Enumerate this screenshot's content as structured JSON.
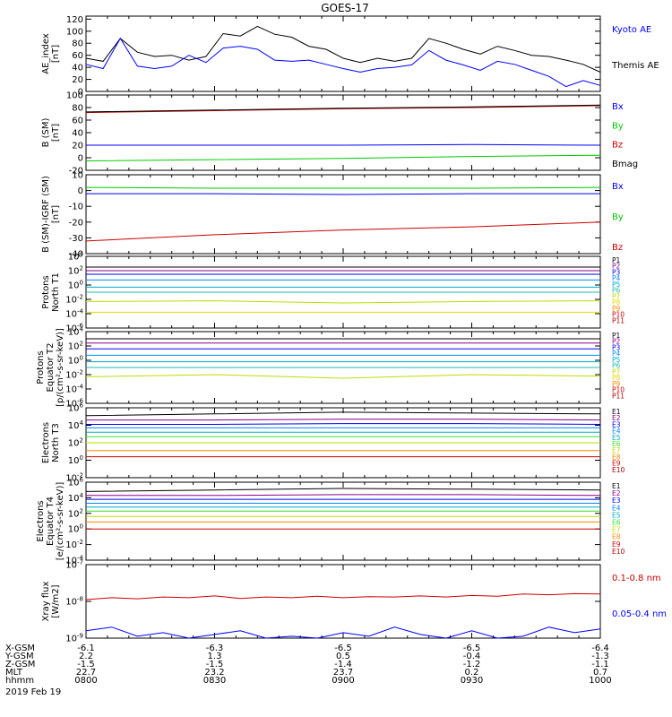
{
  "title": "GOES-17",
  "date_label": "2019 Feb 19",
  "colors": {
    "blue": "#0000ff",
    "green": "#00cc00",
    "red": "#cc0000",
    "black": "#000000",
    "navy": "#000099",
    "cyan": "#00aacc",
    "teal": "#22bbaa",
    "lime": "#33dd33",
    "yellowgreen": "#bbdd00",
    "yellow": "#e8d800",
    "orange": "#ff8800",
    "darkred": "#aa0000",
    "purple": "#880088",
    "dodger": "#0088ff"
  },
  "chart_data": [
    {
      "type": "line",
      "id": "ae",
      "ylabel": "AE_index\n[nT]",
      "ylim": [
        0,
        125
      ],
      "yticks": [
        "0",
        "20",
        "40",
        "60",
        "80",
        "100",
        "120"
      ],
      "legend": [
        {
          "label": "Kyoto AE",
          "color": "#0000ff"
        },
        {
          "label": "Themis AE",
          "color": "#000000"
        }
      ],
      "x": [
        0,
        4,
        8,
        12,
        16,
        20,
        24,
        28,
        32,
        36,
        40,
        44,
        48,
        52,
        56,
        60,
        64,
        68,
        72,
        76,
        80,
        84,
        88,
        92,
        96,
        100,
        104,
        108,
        112,
        116,
        120
      ],
      "series": [
        {
          "name": "Themis AE",
          "color": "#000000",
          "values": [
            55,
            50,
            88,
            65,
            58,
            60,
            52,
            58,
            96,
            92,
            108,
            95,
            90,
            75,
            70,
            55,
            48,
            55,
            50,
            55,
            88,
            80,
            70,
            62,
            75,
            68,
            60,
            58,
            52,
            45,
            32
          ]
        },
        {
          "name": "Kyoto AE",
          "color": "#0000ff",
          "values": [
            45,
            38,
            88,
            42,
            38,
            42,
            60,
            48,
            72,
            75,
            70,
            52,
            50,
            52,
            45,
            38,
            32,
            38,
            40,
            44,
            68,
            52,
            44,
            35,
            50,
            45,
            35,
            25,
            8,
            18,
            10
          ]
        }
      ]
    },
    {
      "type": "line",
      "id": "bsm",
      "ylabel": "B (SM)\n[nT]",
      "ylim": [
        -20,
        100
      ],
      "yticks": [
        "-20",
        "0",
        "20",
        "40",
        "60",
        "80",
        "100"
      ],
      "legend": [
        {
          "label": "Bx",
          "color": "#0000ff"
        },
        {
          "label": "By",
          "color": "#00cc00"
        },
        {
          "label": "Bz",
          "color": "#cc0000"
        },
        {
          "label": "Bmag",
          "color": "#000000"
        }
      ],
      "x": [
        0,
        30,
        60,
        90,
        120
      ],
      "series": [
        {
          "name": "Bz",
          "color": "#cc0000",
          "values": [
            72,
            75,
            78,
            80,
            83
          ]
        },
        {
          "name": "Bmag",
          "color": "#000000",
          "values": [
            73,
            76,
            79,
            81,
            84
          ]
        },
        {
          "name": "Bx",
          "color": "#0000ff",
          "values": [
            20,
            20,
            20,
            21,
            20
          ]
        },
        {
          "name": "By",
          "color": "#00cc00",
          "values": [
            -5,
            -3,
            -1,
            2,
            4
          ]
        }
      ]
    },
    {
      "type": "line",
      "id": "bigrf",
      "ylabel": "B (SM)-IGRF (SM)\n[nT]",
      "ylim": [
        -40,
        10
      ],
      "yticks": [
        "-40",
        "-30",
        "-20",
        "-10",
        "0",
        "10"
      ],
      "legend": [
        {
          "label": "Bx",
          "color": "#0000ff"
        },
        {
          "label": "By",
          "color": "#00cc00"
        },
        {
          "label": "Bz",
          "color": "#cc0000"
        }
      ],
      "x": [
        0,
        30,
        60,
        90,
        120
      ],
      "series": [
        {
          "name": "By",
          "color": "#00cc00",
          "values": [
            2,
            1.5,
            1.5,
            1.5,
            2
          ]
        },
        {
          "name": "Bx",
          "color": "#0000ff",
          "values": [
            -2,
            -2,
            -2.5,
            -2,
            -2
          ]
        },
        {
          "name": "Bz",
          "color": "#cc0000",
          "values": [
            -32,
            -28,
            -25,
            -23,
            -20
          ]
        }
      ]
    },
    {
      "type": "line",
      "id": "pt1",
      "log": true,
      "ylabel": "Protons\nNorth T1",
      "ylim": [
        -6,
        4
      ],
      "yticks": [
        "10^4",
        "10^2",
        "10^0",
        "10^-2",
        "10^-4",
        "10^-6"
      ],
      "legend": [
        {
          "label": "P1",
          "color": "#000000"
        },
        {
          "label": "P2",
          "color": "#880088"
        },
        {
          "label": "P3",
          "color": "#0000ff"
        },
        {
          "label": "P4",
          "color": "#0088ff"
        },
        {
          "label": "P5",
          "color": "#00aacc"
        },
        {
          "label": "P6",
          "color": "#22bbaa"
        },
        {
          "label": "P7",
          "color": "#bbdd00"
        },
        {
          "label": "P8",
          "color": "#e8d800"
        },
        {
          "label": "P9",
          "color": "#ff8800"
        },
        {
          "label": "P10",
          "color": "#cc0000"
        },
        {
          "label": "P11",
          "color": "#aa0000"
        }
      ],
      "x": [
        0,
        30,
        60,
        90,
        120
      ],
      "series": [
        {
          "name": "P1",
          "color": "#000000",
          "values": [
            2.5,
            2.5,
            2.5,
            2.5,
            2.5
          ]
        },
        {
          "name": "P2",
          "color": "#880088",
          "values": [
            2.0,
            2.0,
            2.0,
            2.0,
            2.0
          ]
        },
        {
          "name": "P3",
          "color": "#0000ff",
          "values": [
            1.5,
            1.5,
            1.5,
            1.5,
            1.5
          ]
        },
        {
          "name": "P4",
          "color": "#0088ff",
          "values": [
            0.7,
            0.7,
            0.7,
            0.7,
            0.7
          ]
        },
        {
          "name": "P5",
          "color": "#00aacc",
          "values": [
            -0.3,
            -0.3,
            -0.3,
            -0.3,
            -0.3
          ]
        },
        {
          "name": "P6",
          "color": "#22bbaa",
          "values": [
            -1.0,
            -1.0,
            -1.0,
            -1.0,
            -1.0
          ]
        },
        {
          "name": "P7",
          "color": "#bbdd00",
          "values": [
            -2.3,
            -2.2,
            -2.5,
            -2.3,
            -2.2
          ]
        },
        {
          "name": "P8",
          "color": "#e8d800",
          "values": [
            -3.8,
            -3.8,
            -3.8,
            -3.8,
            -3.8
          ]
        }
      ]
    },
    {
      "type": "line",
      "id": "pt2",
      "log": true,
      "ylabel": "Protons\nEquator T2\n[p/(cm²-s-sr-keV)]",
      "ylim": [
        -6,
        4
      ],
      "yticks": [
        "10^4",
        "10^2",
        "10^0",
        "10^-2",
        "10^-4",
        "10^-6"
      ],
      "legend": [
        {
          "label": "P1",
          "color": "#000000"
        },
        {
          "label": "P2",
          "color": "#880088"
        },
        {
          "label": "P3",
          "color": "#0000ff"
        },
        {
          "label": "P4",
          "color": "#0088ff"
        },
        {
          "label": "P5",
          "color": "#00aacc"
        },
        {
          "label": "P6",
          "color": "#22bbaa"
        },
        {
          "label": "P7",
          "color": "#bbdd00"
        },
        {
          "label": "P8",
          "color": "#e8d800"
        },
        {
          "label": "P9",
          "color": "#ff8800"
        },
        {
          "label": "P10",
          "color": "#cc0000"
        },
        {
          "label": "P11",
          "color": "#aa0000"
        }
      ],
      "x": [
        0,
        30,
        60,
        90,
        120
      ],
      "series": [
        {
          "name": "P1",
          "color": "#000000",
          "values": [
            3.0,
            3.0,
            3.0,
            3.0,
            3.0
          ]
        },
        {
          "name": "P2",
          "color": "#880088",
          "values": [
            2.4,
            2.4,
            2.4,
            2.4,
            2.4
          ]
        },
        {
          "name": "P3",
          "color": "#0000ff",
          "values": [
            1.6,
            1.6,
            1.6,
            1.6,
            1.6
          ]
        },
        {
          "name": "P4",
          "color": "#0088ff",
          "values": [
            0.7,
            0.7,
            0.7,
            0.7,
            0.7
          ]
        },
        {
          "name": "P5",
          "color": "#00aacc",
          "values": [
            -0.2,
            -0.2,
            -0.2,
            -0.2,
            -0.2
          ]
        },
        {
          "name": "P6",
          "color": "#22bbaa",
          "values": [
            -1.0,
            -1.0,
            -1.0,
            -1.0,
            -1.0
          ]
        },
        {
          "name": "P7",
          "color": "#bbdd00",
          "values": [
            -2.3,
            -2.0,
            -2.5,
            -2.0,
            -2.2
          ]
        }
      ]
    },
    {
      "type": "line",
      "id": "et3",
      "log": true,
      "ylabel": "Electrons\nNorth T3",
      "ylim": [
        -2,
        6
      ],
      "yticks": [
        "10^6",
        "10^4",
        "10^2",
        "10^0",
        "10^-2"
      ],
      "legend": [
        {
          "label": "E1",
          "color": "#000000"
        },
        {
          "label": "E2",
          "color": "#880088"
        },
        {
          "label": "E3",
          "color": "#0000ff"
        },
        {
          "label": "E4",
          "color": "#0088ff"
        },
        {
          "label": "E5",
          "color": "#00aacc"
        },
        {
          "label": "E6",
          "color": "#33dd33"
        },
        {
          "label": "E7",
          "color": "#bbdd00"
        },
        {
          "label": "E8",
          "color": "#ff8800"
        },
        {
          "label": "E9",
          "color": "#cc0000"
        },
        {
          "label": "E10",
          "color": "#aa0000"
        }
      ],
      "x": [
        0,
        30,
        60,
        90,
        120
      ],
      "series": [
        {
          "name": "E1",
          "color": "#000000",
          "values": [
            5.1,
            5.3,
            5.5,
            5.4,
            5.3
          ]
        },
        {
          "name": "E2",
          "color": "#880088",
          "values": [
            4.6,
            4.6,
            4.7,
            4.7,
            4.6
          ]
        },
        {
          "name": "E3",
          "color": "#0000ff",
          "values": [
            4.1,
            4.1,
            4.2,
            4.2,
            4.1
          ]
        },
        {
          "name": "E4",
          "color": "#0088ff",
          "values": [
            3.7,
            3.7,
            3.7,
            3.7,
            3.7
          ]
        },
        {
          "name": "E5",
          "color": "#00aacc",
          "values": [
            3.2,
            3.2,
            3.2,
            3.2,
            3.2
          ]
        },
        {
          "name": "E6",
          "color": "#33dd33",
          "values": [
            2.7,
            2.7,
            2.7,
            2.7,
            2.7
          ]
        },
        {
          "name": "E7",
          "color": "#bbdd00",
          "values": [
            2.0,
            2.0,
            2.0,
            2.0,
            2.0
          ]
        },
        {
          "name": "E8",
          "color": "#ff8800",
          "values": [
            1.1,
            1.1,
            1.1,
            1.1,
            1.1
          ]
        },
        {
          "name": "E9",
          "color": "#cc0000",
          "values": [
            0.4,
            0.4,
            0.4,
            0.4,
            0.4
          ]
        }
      ]
    },
    {
      "type": "line",
      "id": "et4",
      "log": true,
      "ylabel": "Electrons\nEquator T4\n[e/(cm²-s-sr-keV)]",
      "ylim": [
        -4,
        6
      ],
      "yticks": [
        "10^6",
        "10^4",
        "10^2",
        "10^0",
        "10^-2",
        "10^-4"
      ],
      "legend": [
        {
          "label": "E1",
          "color": "#000000"
        },
        {
          "label": "E2",
          "color": "#880088"
        },
        {
          "label": "E3",
          "color": "#0000ff"
        },
        {
          "label": "E4",
          "color": "#0088ff"
        },
        {
          "label": "E5",
          "color": "#00aacc"
        },
        {
          "label": "E6",
          "color": "#33dd33"
        },
        {
          "label": "E7",
          "color": "#bbdd00"
        },
        {
          "label": "E8",
          "color": "#ff8800"
        },
        {
          "label": "E9",
          "color": "#cc0000"
        },
        {
          "label": "E10",
          "color": "#aa0000"
        }
      ],
      "x": [
        0,
        30,
        60,
        90,
        120
      ],
      "series": [
        {
          "name": "E1",
          "color": "#000000",
          "values": [
            4.8,
            5.0,
            5.2,
            5.1,
            5.0
          ]
        },
        {
          "name": "E2",
          "color": "#880088",
          "values": [
            4.3,
            4.3,
            4.4,
            4.4,
            4.3
          ]
        },
        {
          "name": "E3",
          "color": "#0000ff",
          "values": [
            3.8,
            3.8,
            3.8,
            3.8,
            3.8
          ]
        },
        {
          "name": "E4",
          "color": "#0088ff",
          "values": [
            3.3,
            3.3,
            3.3,
            3.3,
            3.3
          ]
        },
        {
          "name": "E5",
          "color": "#00aacc",
          "values": [
            2.8,
            2.8,
            2.8,
            2.8,
            2.8
          ]
        },
        {
          "name": "E6",
          "color": "#33dd33",
          "values": [
            2.3,
            2.3,
            2.3,
            2.3,
            2.3
          ]
        },
        {
          "name": "E7",
          "color": "#bbdd00",
          "values": [
            1.6,
            1.6,
            1.6,
            1.6,
            1.6
          ]
        },
        {
          "name": "E8",
          "color": "#ff8800",
          "values": [
            0.9,
            0.9,
            0.9,
            0.9,
            0.9
          ]
        },
        {
          "name": "E9",
          "color": "#cc0000",
          "values": [
            0.0,
            0.0,
            0.0,
            0.0,
            0.0
          ]
        }
      ]
    },
    {
      "type": "line",
      "id": "xray",
      "log": true,
      "ylabel": "Xray  flux\n[W/m2]",
      "ylim": [
        -9,
        -7
      ],
      "yticks": [
        "10^-7",
        "10^-8",
        "10^-9"
      ],
      "legend": [
        {
          "label": "0.1-0.8 nm",
          "color": "#cc0000"
        },
        {
          "label": "0.05-0.4 nm",
          "color": "#0000ff"
        }
      ],
      "x": [
        0,
        6,
        12,
        18,
        24,
        30,
        36,
        42,
        48,
        54,
        60,
        66,
        72,
        78,
        84,
        90,
        96,
        102,
        108,
        114,
        120
      ],
      "series": [
        {
          "name": "0.1-0.8 nm",
          "color": "#cc0000",
          "values": [
            -7.95,
            -7.9,
            -7.93,
            -7.88,
            -7.9,
            -7.85,
            -7.92,
            -7.88,
            -7.9,
            -7.86,
            -7.9,
            -7.87,
            -7.88,
            -7.85,
            -7.88,
            -7.84,
            -7.86,
            -7.8,
            -7.82,
            -7.79,
            -7.8
          ]
        },
        {
          "name": "0.05-0.4 nm",
          "color": "#0000ff",
          "values": [
            -8.8,
            -8.7,
            -8.95,
            -8.85,
            -9.0,
            -8.9,
            -8.8,
            -9.0,
            -8.95,
            -9.0,
            -8.85,
            -8.95,
            -8.7,
            -8.9,
            -9.0,
            -8.8,
            -9.0,
            -8.95,
            -8.7,
            -8.85,
            -8.75
          ]
        }
      ]
    }
  ],
  "footer": {
    "row_labels": [
      "X-GSM",
      "Y-GSM",
      "Z-GSM",
      "MLT",
      "hhmm"
    ],
    "columns": [
      [
        "-6.1",
        "2.2",
        "-1.5",
        "22.7",
        "0800"
      ],
      [
        "-6.3",
        "1.3",
        "-1.5",
        "23.2",
        "0830"
      ],
      [
        "-6.5",
        "0.5",
        "-1.4",
        "23.7",
        "0900"
      ],
      [
        "-6.5",
        "-0.4",
        "-1.2",
        "0.2",
        "0930"
      ],
      [
        "-6.4",
        "-1.3",
        "-1.1",
        "0.7",
        "1000"
      ]
    ]
  }
}
